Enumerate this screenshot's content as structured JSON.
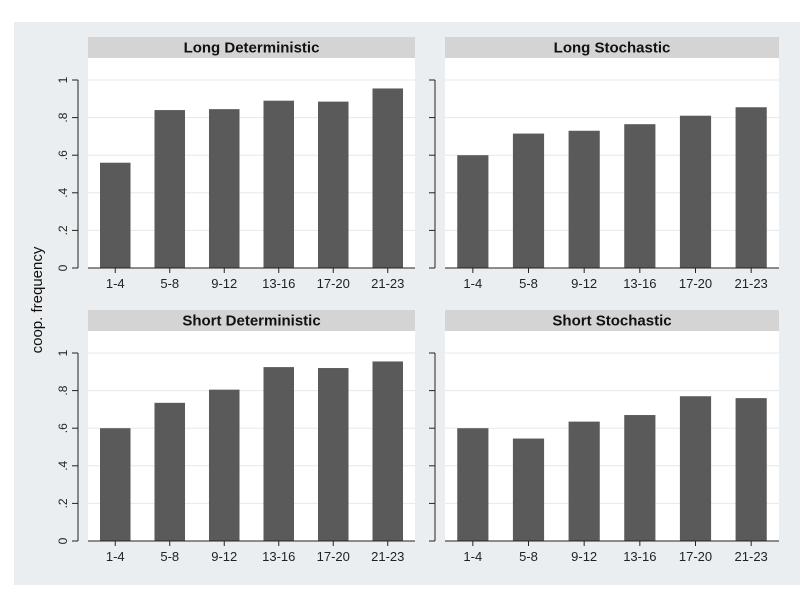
{
  "header_fragment": "",
  "ylabel": "coop. frequency",
  "colors": {
    "outer_bg": "#eaeef1",
    "plot_bg": "#ffffff",
    "title_band": "#d4d4d4",
    "bar": "#5a5a5a",
    "grid": "#e6e9ec",
    "axis": "#222222"
  },
  "chart_data": [
    {
      "type": "bar",
      "title": "Long Deterministic",
      "categories": [
        "1-4",
        "5-8",
        "9-12",
        "13-16",
        "17-20",
        "21-23"
      ],
      "values": [
        0.56,
        0.84,
        0.845,
        0.89,
        0.885,
        0.955
      ],
      "ylim": [
        0,
        1
      ],
      "yticks": [
        0,
        0.2,
        0.4,
        0.6,
        0.8,
        1
      ],
      "ytick_labels": [
        "0",
        ".2",
        ".4",
        ".6",
        ".8",
        "1"
      ],
      "grid": true
    },
    {
      "type": "bar",
      "title": "Long Stochastic",
      "categories": [
        "1-4",
        "5-8",
        "9-12",
        "13-16",
        "17-20",
        "21-23"
      ],
      "values": [
        0.6,
        0.715,
        0.73,
        0.765,
        0.81,
        0.855
      ],
      "ylim": [
        0,
        1
      ],
      "yticks": [
        0,
        0.2,
        0.4,
        0.6,
        0.8,
        1
      ],
      "ytick_labels": [
        "0",
        ".2",
        ".4",
        ".6",
        ".8",
        "1"
      ],
      "grid": true
    },
    {
      "type": "bar",
      "title": "Short Deterministic",
      "categories": [
        "1-4",
        "5-8",
        "9-12",
        "13-16",
        "17-20",
        "21-23"
      ],
      "values": [
        0.6,
        0.735,
        0.805,
        0.925,
        0.92,
        0.955
      ],
      "ylim": [
        0,
        1
      ],
      "yticks": [
        0,
        0.2,
        0.4,
        0.6,
        0.8,
        1
      ],
      "ytick_labels": [
        "0",
        ".2",
        ".4",
        ".6",
        ".8",
        "1"
      ],
      "grid": true
    },
    {
      "type": "bar",
      "title": "Short Stochastic",
      "categories": [
        "1-4",
        "5-8",
        "9-12",
        "13-16",
        "17-20",
        "21-23"
      ],
      "values": [
        0.6,
        0.545,
        0.635,
        0.67,
        0.77,
        0.76
      ],
      "ylim": [
        0,
        1
      ],
      "yticks": [
        0,
        0.2,
        0.4,
        0.6,
        0.8,
        1
      ],
      "ytick_labels": [
        "0",
        ".2",
        ".4",
        ".6",
        ".8",
        "1"
      ],
      "grid": true
    }
  ]
}
